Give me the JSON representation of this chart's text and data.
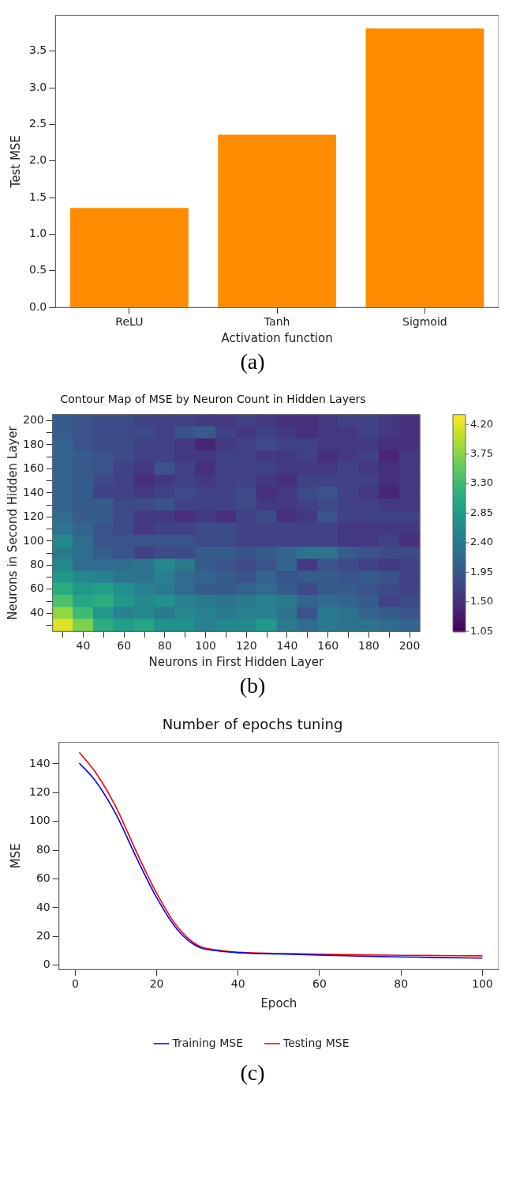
{
  "chart_data": [
    {
      "type": "bar",
      "xlabel": "Activation function",
      "ylabel": "Test MSE",
      "categories": [
        "ReLU",
        "Tanh",
        "Sigmoid"
      ],
      "values": [
        1.36,
        2.36,
        3.81
      ],
      "color": "#ff8c00",
      "ylim": [
        0,
        3.99
      ],
      "yticks": [
        {
          "value": 0,
          "label": "0.0"
        },
        0.5,
        {
          "value": 1,
          "label": "1.0"
        },
        1.5,
        {
          "value": 2,
          "label": "2.0"
        },
        2.5,
        {
          "value": 3,
          "label": "3.0"
        },
        3.5
      ],
      "grid": false,
      "annotations": [
        "(a)"
      ]
    },
    {
      "type": "heatmap",
      "title": "Contour Map of MSE by Neuron Count in Hidden Layers",
      "xlabel": "Neurons in First Hidden Layer",
      "ylabel": "Neurons in Second Hidden Layer",
      "categories": [
        null,
        "40",
        null,
        "60",
        null,
        "80",
        null,
        "100",
        null,
        "120",
        null,
        "140",
        null,
        "160",
        null,
        "180",
        null,
        "200"
      ],
      "y_categories": [
        "200",
        null,
        "180",
        null,
        "160",
        null,
        "140",
        null,
        "120",
        null,
        "100",
        null,
        "80",
        null,
        "60",
        null,
        "40",
        null
      ],
      "cells": [
        [
          2.0,
          1.9,
          1.8,
          1.8,
          1.7,
          1.7,
          1.7,
          1.6,
          1.6,
          1.7,
          1.6,
          1.5,
          1.5,
          1.6,
          1.7,
          1.7,
          1.6,
          1.5
        ],
        [
          2.0,
          1.9,
          1.8,
          1.8,
          1.8,
          1.7,
          1.9,
          2.0,
          1.7,
          1.6,
          1.7,
          1.6,
          1.5,
          1.6,
          1.6,
          1.7,
          1.6,
          1.5
        ],
        [
          2.1,
          1.9,
          1.8,
          1.8,
          1.7,
          1.7,
          1.6,
          1.4,
          1.6,
          1.7,
          1.8,
          1.7,
          1.7,
          1.6,
          1.6,
          1.6,
          1.5,
          1.5
        ],
        [
          2.1,
          2.0,
          1.9,
          1.8,
          1.7,
          1.7,
          1.6,
          1.6,
          1.7,
          1.7,
          1.6,
          1.6,
          1.7,
          1.5,
          1.6,
          1.7,
          1.4,
          1.6
        ],
        [
          2.1,
          2.0,
          1.9,
          1.7,
          1.6,
          1.9,
          1.7,
          1.5,
          1.7,
          1.7,
          1.7,
          1.6,
          1.6,
          1.6,
          1.7,
          1.6,
          1.5,
          1.6
        ],
        [
          2.1,
          2.0,
          1.8,
          1.7,
          1.5,
          1.6,
          1.7,
          1.6,
          1.7,
          1.7,
          1.6,
          1.5,
          1.7,
          1.7,
          1.7,
          1.7,
          1.5,
          1.6
        ],
        [
          2.1,
          2.0,
          1.7,
          1.7,
          1.6,
          1.7,
          1.8,
          1.7,
          1.7,
          1.8,
          1.5,
          1.6,
          1.8,
          1.9,
          1.7,
          1.6,
          1.4,
          1.6
        ],
        [
          2.1,
          2.0,
          2.0,
          1.8,
          1.8,
          1.9,
          1.7,
          1.7,
          1.7,
          1.8,
          1.6,
          1.6,
          1.7,
          1.8,
          1.7,
          1.7,
          1.6,
          1.6
        ],
        [
          2.2,
          2.0,
          2.0,
          1.8,
          1.6,
          1.6,
          1.5,
          1.6,
          1.5,
          1.7,
          1.8,
          1.5,
          1.6,
          1.9,
          1.7,
          1.7,
          1.7,
          1.7
        ],
        [
          2.3,
          2.1,
          1.9,
          1.8,
          1.6,
          1.7,
          1.7,
          1.8,
          1.8,
          1.7,
          1.7,
          1.7,
          1.7,
          1.7,
          1.6,
          1.6,
          1.6,
          1.6
        ],
        [
          2.6,
          2.2,
          1.9,
          1.9,
          1.9,
          1.9,
          1.9,
          1.8,
          1.8,
          1.7,
          1.7,
          1.7,
          1.7,
          1.7,
          1.6,
          1.6,
          1.7,
          1.5
        ],
        [
          2.4,
          2.2,
          2.0,
          1.9,
          1.7,
          1.8,
          1.8,
          2.0,
          2.0,
          1.9,
          2.0,
          2.1,
          2.3,
          2.3,
          2.0,
          1.9,
          1.8,
          1.8
        ],
        [
          2.6,
          2.2,
          2.2,
          2.2,
          2.3,
          2.6,
          2.4,
          2.0,
          1.9,
          1.8,
          1.9,
          2.1,
          1.6,
          1.9,
          1.8,
          1.7,
          1.6,
          1.7
        ],
        [
          2.8,
          2.6,
          2.5,
          2.3,
          2.3,
          2.5,
          2.2,
          2.1,
          2.0,
          1.9,
          2.1,
          1.9,
          2.0,
          2.0,
          1.9,
          2.0,
          1.9,
          1.7
        ],
        [
          3.1,
          2.8,
          2.9,
          2.7,
          2.5,
          2.4,
          2.2,
          2.0,
          2.0,
          2.1,
          2.2,
          2.0,
          1.8,
          2.0,
          2.0,
          1.9,
          1.8,
          1.7
        ],
        [
          3.4,
          3.0,
          3.1,
          2.8,
          2.6,
          2.7,
          2.5,
          2.4,
          2.3,
          2.4,
          2.5,
          2.4,
          2.1,
          2.2,
          2.1,
          2.0,
          1.7,
          1.8
        ],
        [
          3.8,
          3.3,
          2.8,
          2.5,
          2.6,
          2.4,
          2.6,
          2.5,
          2.4,
          2.5,
          2.5,
          2.3,
          1.9,
          2.4,
          2.3,
          2.1,
          2.0,
          1.9
        ],
        [
          4.2,
          3.7,
          3.1,
          2.9,
          3.0,
          2.7,
          2.7,
          2.5,
          2.6,
          2.6,
          2.8,
          2.4,
          2.2,
          2.4,
          2.3,
          2.3,
          2.2,
          2.1
        ]
      ],
      "clim": [
        1.05,
        4.35
      ],
      "cticks": [
        1.05,
        {
          "value": 1.5,
          "label": "1.50"
        },
        1.95,
        {
          "value": 2.4,
          "label": "2.40"
        },
        2.85,
        {
          "value": 3.3,
          "label": "3.30"
        },
        3.75,
        {
          "value": 4.2,
          "label": "4.20"
        }
      ],
      "annotations": [
        "(b)"
      ]
    },
    {
      "type": "line",
      "title": "Number of epochs tuning",
      "xlabel": "Epoch",
      "ylabel": "MSE",
      "x": [
        1,
        5,
        10,
        15,
        20,
        25,
        30,
        35,
        40,
        50,
        60,
        70,
        80,
        90,
        100
      ],
      "series": [
        {
          "name": "Training MSE",
          "color": "#0000ff",
          "values": [
            140.5,
            128,
            105,
            75,
            47,
            25,
            13,
            10,
            8.7,
            7.8,
            7,
            6.3,
            5.8,
            5.3,
            4.9
          ]
        },
        {
          "name": "Testing MSE",
          "color": "#ff0000",
          "values": [
            148,
            134,
            110,
            79,
            50,
            27,
            14,
            10.5,
            9,
            8.2,
            7.6,
            7.2,
            6.9,
            6.7,
            6.5
          ]
        }
      ],
      "xlim": [
        -4,
        104
      ],
      "xticks": [
        0,
        20,
        40,
        60,
        80,
        100
      ],
      "ylim": [
        -3,
        155
      ],
      "yticks": [
        0,
        20,
        40,
        60,
        80,
        100,
        120,
        140
      ],
      "grid": false,
      "marker": "none",
      "legend": "bottom",
      "annotations": [
        "(c)"
      ]
    }
  ]
}
